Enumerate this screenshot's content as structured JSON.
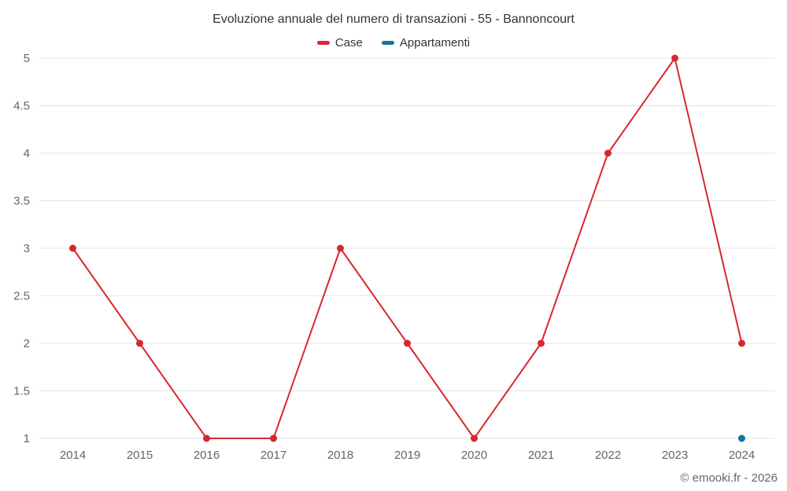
{
  "chart_data": {
    "type": "line",
    "title": "Evoluzione annuale del numero di transazioni - 55 - Bannoncourt",
    "categories": [
      "2014",
      "2015",
      "2016",
      "2017",
      "2018",
      "2019",
      "2020",
      "2021",
      "2022",
      "2023",
      "2024"
    ],
    "series": [
      {
        "name": "Case",
        "color": "#d7282f",
        "values": [
          3,
          2,
          1,
          1,
          3,
          2,
          1,
          2,
          4,
          5,
          2
        ]
      },
      {
        "name": "Appartamenti",
        "color": "#1673a3",
        "values": [
          null,
          null,
          null,
          null,
          null,
          null,
          null,
          null,
          null,
          null,
          1
        ]
      }
    ],
    "ylim": [
      1,
      5
    ],
    "yticks": [
      1,
      1.5,
      2,
      2.5,
      3,
      3.5,
      4,
      4.5,
      5
    ],
    "grid": "horizontal",
    "legend_position": "top",
    "gridline_color": "#e6e6e6",
    "axis_label_color": "#666666",
    "title_color": "#333333"
  },
  "footer": {
    "credit": "© emooki.fr - 2026"
  }
}
